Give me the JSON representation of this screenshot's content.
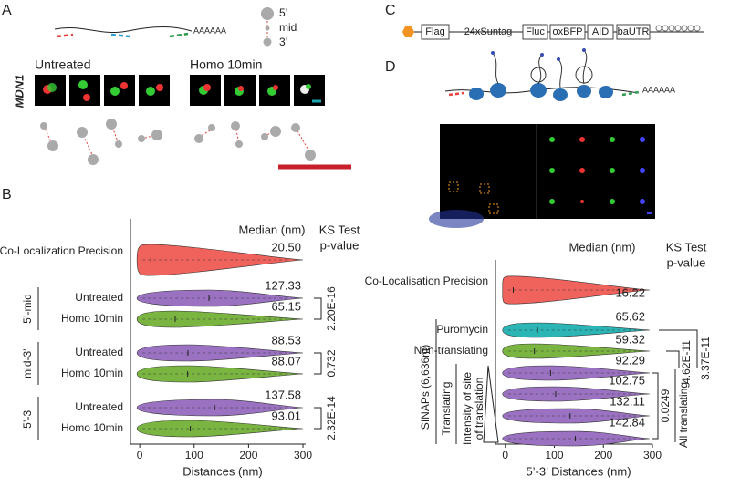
{
  "panel_labels": {
    "a": "A",
    "b": "B",
    "c": "C",
    "d": "D"
  },
  "panel_a": {
    "polyA": "AAAAAA",
    "legend": [
      "5’",
      "mid",
      "3’"
    ],
    "gene": "MDN1",
    "conditions": [
      "Untreated",
      "Homo 10min"
    ]
  },
  "panel_c": {
    "elements": [
      "Flag",
      "24xSuntag",
      "Fluc",
      "oxBFP",
      "AID",
      "baUTR"
    ]
  },
  "panel_d": {
    "polyA": "AAAAAA"
  },
  "chart_data": [
    {
      "type": "violin",
      "median_header": "Median (nm)",
      "test_header": [
        "KS Test",
        "p-value"
      ],
      "xlabel": "Distances (nm)",
      "categories": [
        "Co-Localization Precision",
        "Untreated",
        "Homo 10min",
        "Untreated",
        "Homo 10min",
        "Untreated",
        "Homo 10min"
      ],
      "groups": [
        "5’-mid",
        "mid-3’",
        "5’-3’"
      ],
      "p_values": [
        "2.20E-16",
        "0.732",
        "2.32E-14"
      ],
      "values": [
        20.5,
        127.33,
        65.15,
        88.53,
        88.07,
        137.58,
        93.01
      ],
      "value_labels": [
        "20.50",
        "127.33",
        "65.15",
        "88.53",
        "88.07",
        "137.58",
        "93.01"
      ],
      "colors": [
        "#f0625c",
        "#9b72c2",
        "#7ab541",
        "#9b72c2",
        "#7ab541",
        "#9b72c2",
        "#7ab541"
      ],
      "xlim": [
        -17,
        305
      ],
      "xticks": [
        0,
        100,
        200,
        300
      ]
    },
    {
      "type": "violin",
      "median_header": "Median (nm)",
      "test_header": [
        "KS Test",
        "p-value"
      ],
      "xlabel": "5’-3’ Distances (nm)",
      "categories": [
        "Co-Localisation Precision",
        "Puromycin",
        "Non-translating",
        null,
        null,
        null,
        null
      ],
      "group_label": "SINAPs (6,636nt)",
      "subgroup_label": "Translating",
      "intensity_label": [
        "Intensity of  site",
        "of translation"
      ],
      "p_values": [
        "0.0249",
        "4.62E-11",
        "3.37E-11"
      ],
      "bracket_label": "All translating",
      "values": [
        16.22,
        65.62,
        59.32,
        92.29,
        102.75,
        132.11,
        142.84
      ],
      "colors": [
        "#f0625c",
        "#2bb5b5",
        "#7ab541",
        "#9b72c2",
        "#9b72c2",
        "#9b72c2",
        "#9b72c2"
      ],
      "xlim": [
        -20,
        300
      ],
      "xticks": [
        0,
        100,
        200,
        300
      ]
    }
  ]
}
